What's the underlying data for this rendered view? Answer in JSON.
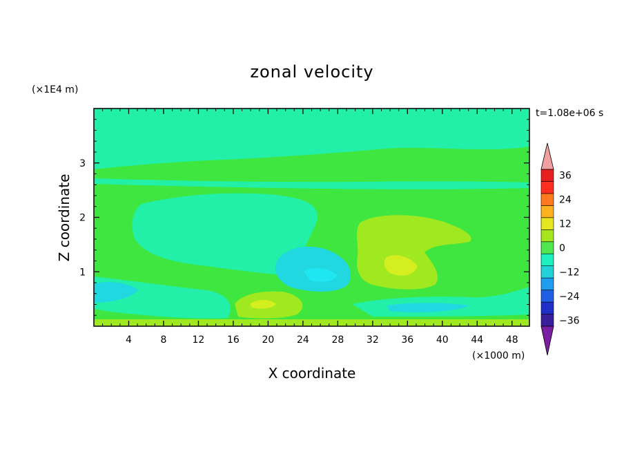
{
  "chart_data": {
    "type": "heatmap",
    "title": "zonal velocity",
    "xlabel": "X coordinate",
    "ylabel": "Z coordinate",
    "x_unit_label": "(×1000 m)",
    "y_unit_label": "(×1E4 m)",
    "time_label": "t=1.08e+06 s",
    "xlim": [
      0,
      50
    ],
    "ylim": [
      0,
      4
    ],
    "x_ticks": [
      "4",
      "8",
      "12",
      "16",
      "20",
      "24",
      "28",
      "32",
      "36",
      "40",
      "44",
      "48"
    ],
    "y_ticks": [
      "1",
      "2",
      "3"
    ],
    "colorbar": {
      "tick_labels": [
        "36",
        "24",
        "12",
        "0",
        "−12",
        "−24",
        "−36"
      ],
      "tick_values": [
        36,
        24,
        12,
        0,
        -12,
        -24,
        -36
      ],
      "levels": [
        -36,
        -30,
        -24,
        -18,
        -12,
        -6,
        0,
        6,
        12,
        18,
        24,
        30,
        36
      ],
      "colors": [
        "#7a1fa2",
        "#3a1f9a",
        "#1f2fc8",
        "#1f5fe6",
        "#1f9ef0",
        "#22d2d8",
        "#1ff0c0",
        "#4fe64f",
        "#a6e61f",
        "#e6e61f",
        "#ffb21f",
        "#ff7a1f",
        "#ff2e1f",
        "#e61f1f",
        "#f0a0a0"
      ],
      "extend": "both"
    },
    "regions": [
      {
        "value": 3,
        "desc": "weak positive flow, most of domain"
      },
      {
        "value": -2,
        "desc": "upper layer z≈2.7–4"
      },
      {
        "value": -3,
        "desc": "mid-left region"
      },
      {
        "value": 8,
        "desc": "positive cell near x=32–38, z=0.7–2"
      },
      {
        "value": 12,
        "desc": "core near x=35, z=1"
      },
      {
        "value": -8,
        "desc": "negative cell near x=24, z=1"
      },
      {
        "value": 10,
        "desc": "near-surface cell x=18–24"
      },
      {
        "value": -10,
        "desc": "near-surface left edge"
      }
    ]
  }
}
